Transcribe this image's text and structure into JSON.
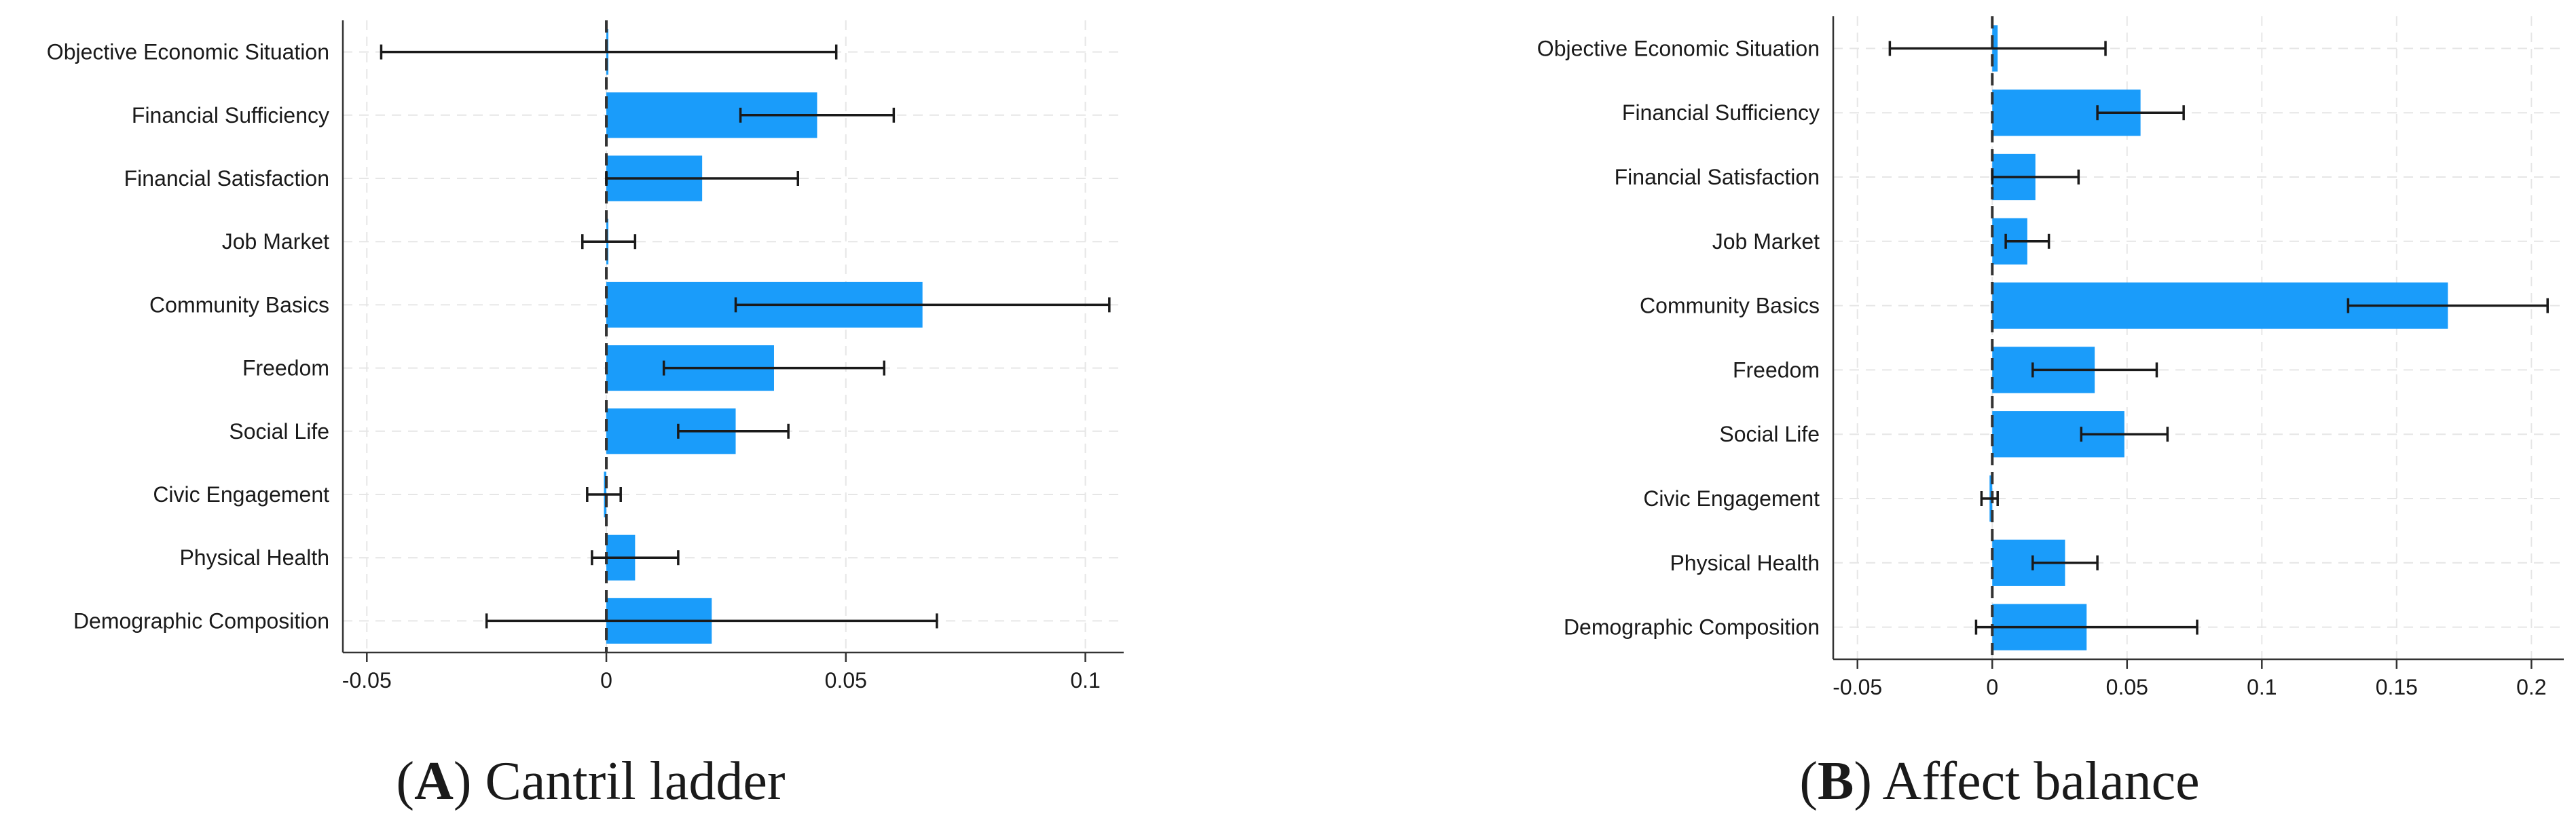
{
  "colors": {
    "bar": "#1a9cfa",
    "error_bar": "#1a1a1a",
    "grid": "#e6e6e6",
    "axis": "#333333",
    "zero_line": "#333333",
    "text": "#1a1a1a",
    "background": "#ffffff"
  },
  "chart_data": [
    {
      "type": "bar",
      "orientation": "horizontal",
      "caption": {
        "letter": "A",
        "text": ") Cantril ladder",
        "open": "("
      },
      "categories": [
        "Objective Economic Situation",
        "Financial Sufficiency",
        "Financial Satisfaction",
        "Job Market",
        "Community Basics",
        "Freedom",
        "Social Life",
        "Civic Engagement",
        "Physical Health",
        "Demographic Composition"
      ],
      "values": [
        0.0003,
        0.044,
        0.02,
        0.0003,
        0.066,
        0.035,
        0.027,
        -0.0005,
        0.006,
        0.022
      ],
      "error_low": [
        -0.047,
        0.028,
        0.0,
        -0.005,
        0.027,
        0.012,
        0.015,
        -0.004,
        -0.003,
        -0.025
      ],
      "error_high": [
        0.048,
        0.06,
        0.04,
        0.006,
        0.105,
        0.058,
        0.038,
        0.003,
        0.015,
        0.069
      ],
      "xlim": [
        -0.055,
        0.108
      ],
      "xticks": [
        -0.05,
        0,
        0.05,
        0.1
      ],
      "xtick_labels": [
        "-0.05",
        "0",
        "0.05",
        "0.1"
      ],
      "xlabel": "",
      "ylabel": "",
      "grid": true,
      "zero_line": "dashed"
    },
    {
      "type": "bar",
      "orientation": "horizontal",
      "caption": {
        "letter": "B",
        "text": ") Affect balance",
        "open": "("
      },
      "categories": [
        "Objective Economic Situation",
        "Financial Sufficiency",
        "Financial Satisfaction",
        "Job Market",
        "Community Basics",
        "Freedom",
        "Social Life",
        "Civic Engagement",
        "Physical Health",
        "Demographic Composition"
      ],
      "values": [
        0.002,
        0.055,
        0.016,
        0.013,
        0.169,
        0.038,
        0.049,
        -0.001,
        0.027,
        0.035
      ],
      "error_low": [
        -0.038,
        0.039,
        0.0,
        0.005,
        0.132,
        0.015,
        0.033,
        -0.004,
        0.015,
        -0.006
      ],
      "error_high": [
        0.042,
        0.071,
        0.032,
        0.021,
        0.206,
        0.061,
        0.065,
        0.002,
        0.039,
        0.076
      ],
      "xlim": [
        -0.059,
        0.212
      ],
      "xticks": [
        -0.05,
        0,
        0.05,
        0.1,
        0.15,
        0.2
      ],
      "xtick_labels": [
        "-0.05",
        "0",
        "0.05",
        "0.1",
        "0.15",
        "0.2"
      ],
      "xlabel": "",
      "ylabel": "",
      "grid": true,
      "zero_line": "dashed"
    }
  ]
}
